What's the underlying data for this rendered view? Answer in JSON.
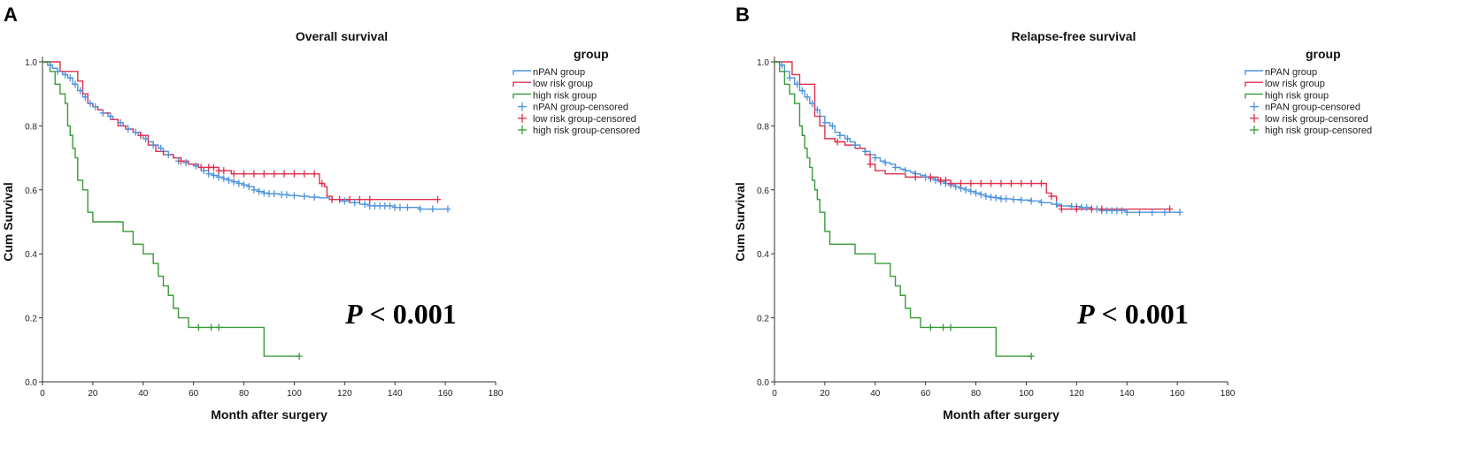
{
  "chart_data": [
    {
      "type": "line",
      "panel_label": "A",
      "title": "Overall survival",
      "xlabel": "Month after surgery",
      "ylabel": "Cum Survival",
      "xlim": [
        0,
        180
      ],
      "ylim": [
        0,
        1
      ],
      "xticks": [
        "0",
        "20",
        "40",
        "60",
        "80",
        "100",
        "120",
        "140",
        "160",
        "180"
      ],
      "yticks": [
        "0.0",
        "0.2",
        "0.4",
        "0.6",
        "0.8",
        "1.0"
      ],
      "legend_title": "group",
      "legend": [
        "nPAN group",
        "low risk group",
        "high risk group",
        "nPAN group-censored",
        "low risk group-censored",
        "high risk group-censored"
      ],
      "annotation": {
        "italic": "P",
        "rest": " < 0.001"
      },
      "series": [
        {
          "name": "nPAN group",
          "color": "#4f94dc",
          "x": [
            0,
            2,
            4,
            6,
            8,
            10,
            12,
            14,
            16,
            18,
            20,
            22,
            24,
            26,
            28,
            30,
            32,
            34,
            36,
            38,
            40,
            42,
            44,
            46,
            48,
            50,
            52,
            54,
            56,
            58,
            60,
            62,
            64,
            66,
            68,
            70,
            72,
            74,
            76,
            78,
            80,
            82,
            84,
            86,
            88,
            90,
            94,
            98,
            102,
            106,
            110,
            114,
            118,
            122,
            126,
            130,
            140,
            150,
            161
          ],
          "y": [
            1.0,
            0.99,
            0.98,
            0.97,
            0.96,
            0.95,
            0.93,
            0.91,
            0.89,
            0.87,
            0.86,
            0.85,
            0.84,
            0.83,
            0.82,
            0.81,
            0.8,
            0.79,
            0.78,
            0.77,
            0.76,
            0.75,
            0.74,
            0.73,
            0.72,
            0.71,
            0.7,
            0.69,
            0.685,
            0.68,
            0.675,
            0.67,
            0.66,
            0.65,
            0.645,
            0.64,
            0.635,
            0.63,
            0.625,
            0.62,
            0.615,
            0.61,
            0.6,
            0.595,
            0.59,
            0.588,
            0.585,
            0.582,
            0.58,
            0.577,
            0.575,
            0.57,
            0.565,
            0.56,
            0.555,
            0.55,
            0.545,
            0.54,
            0.54
          ],
          "censored": [
            3,
            6,
            9,
            11,
            13,
            15,
            17,
            19,
            21,
            24,
            27,
            31,
            34,
            37,
            41,
            44,
            47,
            50,
            54,
            57,
            61,
            64,
            66,
            68,
            70,
            72,
            74,
            76,
            78,
            80,
            82,
            84,
            86,
            88,
            90,
            92,
            95,
            97,
            100,
            104,
            108,
            115,
            120,
            124,
            128,
            130,
            132,
            134,
            136,
            138,
            140,
            142,
            145,
            150,
            155,
            161
          ]
        },
        {
          "name": "low risk group",
          "color": "#e0304c",
          "x": [
            0,
            5,
            7,
            12,
            14,
            16,
            18,
            20,
            22,
            24,
            27,
            30,
            33,
            36,
            39,
            42,
            45,
            48,
            52,
            55,
            58,
            62,
            66,
            70,
            75,
            80,
            85,
            90,
            95,
            100,
            105,
            110,
            112,
            113,
            115,
            120,
            130,
            157
          ],
          "y": [
            1.0,
            1.0,
            0.97,
            0.97,
            0.94,
            0.9,
            0.87,
            0.86,
            0.85,
            0.84,
            0.82,
            0.8,
            0.79,
            0.78,
            0.77,
            0.74,
            0.72,
            0.71,
            0.7,
            0.69,
            0.68,
            0.67,
            0.67,
            0.66,
            0.65,
            0.65,
            0.65,
            0.65,
            0.65,
            0.65,
            0.65,
            0.62,
            0.61,
            0.58,
            0.57,
            0.57,
            0.57,
            0.57
          ],
          "censored": [
            39,
            55,
            63,
            66,
            68,
            70,
            72,
            76,
            80,
            84,
            88,
            92,
            96,
            100,
            104,
            108,
            111,
            115,
            118,
            122,
            126,
            130,
            157
          ]
        },
        {
          "name": "high risk group",
          "color": "#3a9a3a",
          "x": [
            0,
            3,
            5,
            7,
            9,
            10,
            11,
            12,
            13,
            14,
            16,
            18,
            20,
            28,
            32,
            36,
            40,
            44,
            46,
            48,
            50,
            52,
            54,
            56,
            58,
            60,
            62,
            70,
            78,
            84,
            88,
            102
          ],
          "y": [
            1.0,
            0.97,
            0.93,
            0.9,
            0.87,
            0.8,
            0.77,
            0.73,
            0.7,
            0.63,
            0.6,
            0.53,
            0.5,
            0.5,
            0.47,
            0.43,
            0.4,
            0.37,
            0.33,
            0.3,
            0.27,
            0.23,
            0.2,
            0.2,
            0.17,
            0.17,
            0.17,
            0.17,
            0.17,
            0.17,
            0.08,
            0.08
          ],
          "censored": [
            62,
            67,
            70,
            102
          ]
        }
      ]
    },
    {
      "type": "line",
      "panel_label": "B",
      "title": "Relapse-free survival",
      "xlabel": "Month after surgery",
      "ylabel": "Cum Survival",
      "xlim": [
        0,
        180
      ],
      "ylim": [
        0,
        1
      ],
      "xticks": [
        "0",
        "20",
        "40",
        "60",
        "80",
        "100",
        "120",
        "140",
        "160",
        "180"
      ],
      "yticks": [
        "0.0",
        "0.2",
        "0.4",
        "0.6",
        "0.8",
        "1.0"
      ],
      "legend_title": "group",
      "legend": [
        "nPAN group",
        "low risk group",
        "high risk group",
        "nPAN group-censored",
        "low risk group-censored",
        "high risk group-censored"
      ],
      "annotation": {
        "italic": "P",
        "rest": " < 0.001"
      },
      "series": [
        {
          "name": "nPAN group",
          "color": "#4f94dc",
          "x": [
            0,
            2,
            4,
            6,
            8,
            10,
            12,
            14,
            16,
            18,
            20,
            22,
            24,
            26,
            28,
            30,
            32,
            34,
            36,
            38,
            40,
            42,
            44,
            46,
            48,
            50,
            52,
            54,
            56,
            58,
            60,
            62,
            64,
            66,
            68,
            70,
            72,
            74,
            76,
            78,
            80,
            82,
            84,
            86,
            88,
            90,
            94,
            98,
            102,
            106,
            110,
            114,
            118,
            122,
            126,
            130,
            140,
            150,
            161
          ],
          "y": [
            1.0,
            0.99,
            0.97,
            0.95,
            0.93,
            0.91,
            0.89,
            0.87,
            0.85,
            0.83,
            0.81,
            0.8,
            0.78,
            0.77,
            0.76,
            0.75,
            0.74,
            0.73,
            0.72,
            0.71,
            0.7,
            0.69,
            0.685,
            0.68,
            0.67,
            0.665,
            0.66,
            0.655,
            0.65,
            0.645,
            0.64,
            0.635,
            0.63,
            0.625,
            0.62,
            0.615,
            0.61,
            0.605,
            0.6,
            0.595,
            0.59,
            0.585,
            0.58,
            0.577,
            0.575,
            0.572,
            0.57,
            0.568,
            0.565,
            0.56,
            0.555,
            0.55,
            0.548,
            0.545,
            0.54,
            0.535,
            0.53,
            0.53,
            0.53
          ],
          "censored": [
            3,
            6,
            9,
            11,
            13,
            15,
            17,
            20,
            23,
            26,
            29,
            32,
            36,
            40,
            44,
            48,
            52,
            56,
            60,
            62,
            64,
            66,
            68,
            70,
            72,
            74,
            76,
            78,
            80,
            82,
            84,
            86,
            88,
            90,
            92,
            95,
            98,
            102,
            106,
            112,
            118,
            120,
            122,
            124,
            126,
            128,
            130,
            132,
            134,
            136,
            138,
            140,
            145,
            150,
            155,
            161
          ]
        },
        {
          "name": "low risk group",
          "color": "#e0304c",
          "x": [
            0,
            5,
            7,
            10,
            14,
            16,
            18,
            20,
            24,
            28,
            32,
            36,
            38,
            40,
            44,
            48,
            52,
            56,
            60,
            65,
            70,
            75,
            80,
            85,
            90,
            95,
            100,
            105,
            108,
            110,
            112,
            114,
            120,
            130,
            157
          ],
          "y": [
            1.0,
            1.0,
            0.96,
            0.93,
            0.93,
            0.83,
            0.8,
            0.76,
            0.75,
            0.74,
            0.73,
            0.71,
            0.68,
            0.66,
            0.65,
            0.65,
            0.64,
            0.64,
            0.64,
            0.63,
            0.62,
            0.62,
            0.62,
            0.62,
            0.62,
            0.62,
            0.62,
            0.62,
            0.59,
            0.58,
            0.55,
            0.54,
            0.54,
            0.54,
            0.54
          ],
          "censored": [
            25,
            38,
            56,
            62,
            66,
            68,
            70,
            74,
            78,
            82,
            86,
            90,
            94,
            98,
            102,
            106,
            110,
            114,
            120,
            126,
            130,
            157
          ]
        },
        {
          "name": "high risk group",
          "color": "#3a9a3a",
          "x": [
            0,
            2,
            4,
            6,
            8,
            10,
            11,
            12,
            13,
            14,
            15,
            16,
            17,
            18,
            20,
            22,
            24,
            32,
            36,
            40,
            44,
            46,
            48,
            50,
            52,
            54,
            56,
            58,
            60,
            62,
            70,
            78,
            84,
            88,
            102
          ],
          "y": [
            1.0,
            0.97,
            0.93,
            0.9,
            0.87,
            0.8,
            0.77,
            0.73,
            0.7,
            0.67,
            0.63,
            0.6,
            0.57,
            0.53,
            0.47,
            0.43,
            0.43,
            0.4,
            0.4,
            0.37,
            0.37,
            0.33,
            0.3,
            0.27,
            0.23,
            0.2,
            0.2,
            0.17,
            0.17,
            0.17,
            0.17,
            0.17,
            0.17,
            0.08,
            0.08
          ],
          "censored": [
            62,
            67,
            70,
            102
          ]
        }
      ]
    }
  ]
}
